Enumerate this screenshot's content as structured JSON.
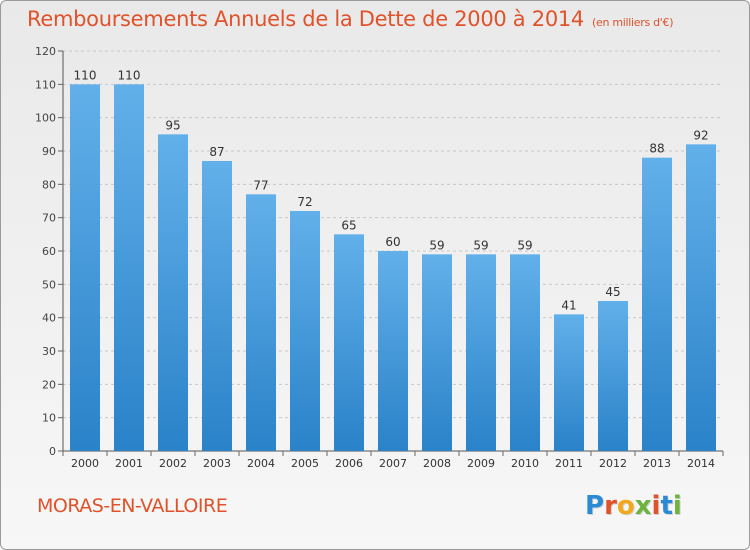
{
  "header": {
    "title": "Remboursements Annuels de la Dette de 2000 à 2014",
    "unit": "(en milliers d'€)"
  },
  "footer": {
    "commune": "MORAS-EN-VALLOIRE",
    "logo": "Proxiti"
  },
  "colors": {
    "accent": "#e0522a",
    "bar_top": "#62b0ea",
    "bar_bottom": "#2a82c8"
  },
  "chart_data": {
    "type": "bar",
    "categories": [
      "2000",
      "2001",
      "2002",
      "2003",
      "2004",
      "2005",
      "2006",
      "2007",
      "2008",
      "2009",
      "2010",
      "2011",
      "2012",
      "2013",
      "2014"
    ],
    "values": [
      110,
      110,
      95,
      87,
      77,
      72,
      65,
      60,
      59,
      59,
      59,
      41,
      45,
      88,
      92
    ],
    "ylim": [
      0,
      120
    ],
    "yticks": [
      0,
      10,
      20,
      30,
      40,
      50,
      60,
      70,
      80,
      90,
      100,
      110,
      120
    ],
    "grid": true,
    "data_labels": true
  }
}
